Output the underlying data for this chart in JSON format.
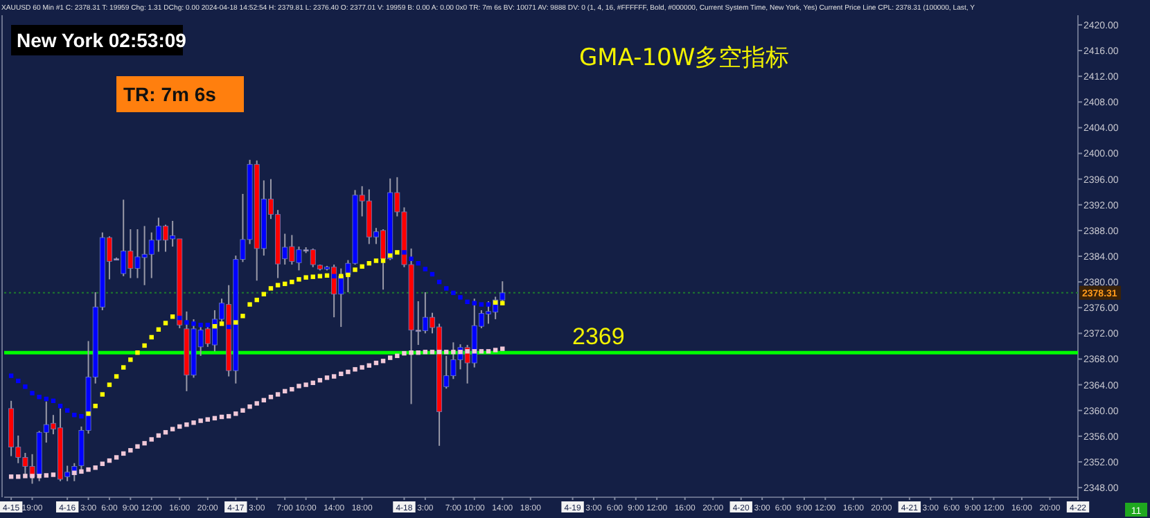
{
  "chart_data": {
    "type": "candlestick",
    "title": "GMA-10W多空指标",
    "annotations": [
      "XAUUSD 60 Min #1 C: 2378.31 T: 19959 Chg: 1.31 DChg: 0.00 2024-04-18 14:52:54 H: 2379.81 L: 2376.40 O: 2377.01 V: 19959 B: 0.00 A: 0.00 0x0 TR: 7m 6s BV: 10071 AV: 9888 DV: 0 (1, 4, 16, #FFFFFF, Bold, #000000, Current System Time, New York, Yes) Current Price Line CPL: 2378.31 (100000, Last, Y",
      "New York 02:53:09",
      "TR: 7m 6s",
      "11"
    ],
    "x": [
      "2024-04-15T16:00",
      "2024-04-15T17:00",
      "2024-04-15T18:00",
      "2024-04-15T19:00",
      "2024-04-15T20:00",
      "2024-04-15T21:00",
      "2024-04-15T22:00",
      "2024-04-15T23:00",
      "2024-04-16T00:00",
      "2024-04-16T01:00",
      "2024-04-16T02:00",
      "2024-04-16T03:00",
      "2024-04-16T04:00",
      "2024-04-16T05:00",
      "2024-04-16T06:00",
      "2024-04-16T07:00",
      "2024-04-16T08:00",
      "2024-04-16T09:00",
      "2024-04-16T10:00",
      "2024-04-16T11:00",
      "2024-04-16T12:00",
      "2024-04-16T13:00",
      "2024-04-16T14:00",
      "2024-04-16T15:00",
      "2024-04-16T16:00",
      "2024-04-16T17:00",
      "2024-04-16T18:00",
      "2024-04-16T19:00",
      "2024-04-16T20:00",
      "2024-04-16T21:00",
      "2024-04-16T22:00",
      "2024-04-16T23:00",
      "2024-04-17T00:00",
      "2024-04-17T01:00",
      "2024-04-17T02:00",
      "2024-04-17T03:00",
      "2024-04-17T04:00",
      "2024-04-17T05:00",
      "2024-04-17T06:00",
      "2024-04-17T07:00",
      "2024-04-17T08:00",
      "2024-04-17T09:00",
      "2024-04-17T10:00",
      "2024-04-17T11:00",
      "2024-04-17T12:00",
      "2024-04-17T13:00",
      "2024-04-17T14:00",
      "2024-04-17T15:00",
      "2024-04-17T16:00",
      "2024-04-17T17:00",
      "2024-04-17T18:00",
      "2024-04-17T19:00",
      "2024-04-17T20:00",
      "2024-04-17T21:00",
      "2024-04-17T22:00",
      "2024-04-17T23:00",
      "2024-04-18T00:00",
      "2024-04-18T01:00",
      "2024-04-18T02:00",
      "2024-04-18T03:00",
      "2024-04-18T04:00",
      "2024-04-18T05:00",
      "2024-04-18T06:00",
      "2024-04-18T07:00",
      "2024-04-18T08:00",
      "2024-04-18T09:00",
      "2024-04-18T10:00",
      "2024-04-18T11:00",
      "2024-04-18T12:00",
      "2024-04-18T13:00",
      "2024-04-18T14:00"
    ],
    "ohlc": [
      [
        2360.3,
        2361.5,
        2352.9,
        2354.3
      ],
      [
        2354.3,
        2356.1,
        2351.8,
        2352.7
      ],
      [
        2352.7,
        2353.4,
        2350.0,
        2351.3
      ],
      [
        2351.3,
        2353.2,
        2348.6,
        2349.7
      ],
      [
        2350.0,
        2356.8,
        2349.0,
        2356.6
      ],
      [
        2356.6,
        2361.4,
        2355.0,
        2357.8
      ],
      [
        2358.0,
        2359.3,
        2356.3,
        2357.1
      ],
      [
        2357.3,
        2360.3,
        2349.0,
        2349.3
      ],
      [
        2349.7,
        2351.4,
        2349.0,
        2350.4
      ],
      [
        2350.0,
        2351.8,
        2349.0,
        2351.3
      ],
      [
        2351.4,
        2357.5,
        2350.7,
        2356.9
      ],
      [
        2356.9,
        2370.8,
        2356.4,
        2365.2
      ],
      [
        2365.2,
        2378.4,
        2364.2,
        2376.1
      ],
      [
        2376.1,
        2387.7,
        2375.6,
        2386.9
      ],
      [
        2386.9,
        2387.1,
        2380.4,
        2383.2
      ],
      [
        2383.6,
        2383.8,
        2383.4,
        2383.6
      ],
      [
        2381.3,
        2392.8,
        2380.9,
        2384.8
      ],
      [
        2384.8,
        2388.2,
        2380.6,
        2382.1
      ],
      [
        2382.1,
        2388.2,
        2380.6,
        2383.9
      ],
      [
        2383.8,
        2388.7,
        2379.5,
        2384.3
      ],
      [
        2384.3,
        2387.7,
        2380.6,
        2386.5
      ],
      [
        2386.5,
        2390.0,
        2384.7,
        2388.7
      ],
      [
        2388.7,
        2388.9,
        2384.7,
        2386.5
      ],
      [
        2386.7,
        2389.5,
        2385.5,
        2387.2
      ],
      [
        2386.7,
        2386.7,
        2372.8,
        2373.3
      ],
      [
        2372.7,
        2375.4,
        2363.0,
        2365.5
      ],
      [
        2365.5,
        2374.2,
        2365.1,
        2372.7
      ],
      [
        2369.9,
        2373.5,
        2368.5,
        2372.5
      ],
      [
        2372.7,
        2373.5,
        2369.9,
        2370.4
      ],
      [
        2370.2,
        2375.6,
        2369.2,
        2374.2
      ],
      [
        2374.2,
        2377.4,
        2373.8,
        2376.7
      ],
      [
        2376.5,
        2379.5,
        2365.3,
        2366.2
      ],
      [
        2366.2,
        2384.1,
        2364.2,
        2383.5
      ],
      [
        2383.5,
        2393.7,
        2383.1,
        2386.6
      ],
      [
        2386.6,
        2399.0,
        2385.9,
        2398.3
      ],
      [
        2398.3,
        2398.9,
        2380.2,
        2385.2
      ],
      [
        2385.2,
        2395.8,
        2384.1,
        2392.9
      ],
      [
        2392.9,
        2396.0,
        2389.8,
        2390.5
      ],
      [
        2390.5,
        2391.2,
        2380.6,
        2382.8
      ],
      [
        2383.6,
        2387.5,
        2382.7,
        2385.4
      ],
      [
        2385.5,
        2387.3,
        2382.7,
        2383.2
      ],
      [
        2383.0,
        2385.5,
        2381.8,
        2385.0
      ],
      [
        2385.0,
        2385.4,
        2384.5,
        2385.0
      ],
      [
        2385.0,
        2385.2,
        2382.3,
        2382.7
      ],
      [
        2382.6,
        2382.7,
        2381.8,
        2382.0
      ],
      [
        2382.0,
        2382.5,
        2381.8,
        2382.3
      ],
      [
        2382.3,
        2382.7,
        2374.5,
        2378.1
      ],
      [
        2378.1,
        2382.1,
        2373.0,
        2380.9
      ],
      [
        2381.1,
        2383.4,
        2378.4,
        2382.9
      ],
      [
        2382.9,
        2394.3,
        2382.7,
        2393.5
      ],
      [
        2393.5,
        2394.9,
        2390.2,
        2392.6
      ],
      [
        2392.6,
        2394.4,
        2385.9,
        2387.0
      ],
      [
        2387.0,
        2388.4,
        2385.9,
        2387.8
      ],
      [
        2388.0,
        2388.2,
        2378.8,
        2383.6
      ],
      [
        2383.6,
        2396.1,
        2383.4,
        2393.9
      ],
      [
        2393.9,
        2396.3,
        2390.2,
        2390.9
      ],
      [
        2390.9,
        2391.6,
        2382.3,
        2382.7
      ],
      [
        2382.7,
        2385.2,
        2361.0,
        2372.5
      ],
      [
        2372.5,
        2377.0,
        2370.2,
        2372.5
      ],
      [
        2372.4,
        2378.4,
        2372.0,
        2374.5
      ],
      [
        2374.5,
        2375.2,
        2372.0,
        2372.9
      ],
      [
        2373.0,
        2373.5,
        2354.5,
        2359.8
      ],
      [
        2363.7,
        2368.5,
        2363.4,
        2365.4
      ],
      [
        2365.4,
        2370.6,
        2364.9,
        2367.9
      ],
      [
        2367.9,
        2370.3,
        2366.4,
        2369.8
      ],
      [
        2369.8,
        2370.2,
        2364.2,
        2367.4
      ],
      [
        2367.4,
        2377.4,
        2366.7,
        2373.2
      ],
      [
        2373.1,
        2375.6,
        2372.8,
        2375.1
      ],
      [
        2375.0,
        2377.0,
        2373.5,
        2375.4
      ],
      [
        2375.3,
        2377.7,
        2374.2,
        2377.2
      ],
      [
        2377.2,
        2380.1,
        2376.7,
        2378.3
      ]
    ],
    "colors": [
      "#ff0000",
      "#ff0000",
      "#ff0000",
      "#ff0000",
      "#0000ff",
      "#0000ff",
      "#ff0000",
      "#ff0000",
      "#0000ff",
      "#0000ff",
      "#0000ff",
      "#0000ff",
      "#0000ff",
      "#0000ff",
      "#ff0000",
      "#c8a0a0",
      "#0000ff",
      "#ff0000",
      "#0000ff",
      "#0000ff",
      "#0000ff",
      "#0000ff",
      "#ff0000",
      "#0000ff",
      "#ff0000",
      "#ff0000",
      "#0000ff",
      "#0000ff",
      "#ff0000",
      "#0000ff",
      "#0000ff",
      "#ff0000",
      "#0000ff",
      "#0000ff",
      "#0000ff",
      "#ff0000",
      "#0000ff",
      "#ff0000",
      "#ff0000",
      "#0000ff",
      "#ff0000",
      "#0000ff",
      "#c8a0a0",
      "#ff0000",
      "#ff0000",
      "#0000ff",
      "#ff0000",
      "#0000ff",
      "#0000ff",
      "#0000ff",
      "#ff0000",
      "#ff0000",
      "#0000ff",
      "#ff0000",
      "#0000ff",
      "#ff0000",
      "#ff0000",
      "#ff0000",
      "#c8a0a0",
      "#0000ff",
      "#ff0000",
      "#ff0000",
      "#0000ff",
      "#0000ff",
      "#0000ff",
      "#ff0000",
      "#0000ff",
      "#0000ff",
      "#0000ff",
      "#0000ff",
      "#0000ff"
    ],
    "series": [
      {
        "type": "scatter",
        "marker": "square",
        "color": "#0000ff",
        "values": [
          2365.4,
          2364.6,
          2363.7,
          2362.7,
          2362.1,
          2361.8,
          2361.5,
          2360.7,
          2360.0,
          2359.3,
          2359.1,
          null,
          null,
          null,
          null,
          null,
          null,
          null,
          null,
          null,
          null,
          null,
          null,
          null,
          2374.4,
          2373.7,
          2373.5,
          2373.3,
          2373.3,
          null,
          null,
          2373.0,
          null,
          null,
          null,
          null,
          null,
          null,
          null,
          null,
          null,
          null,
          null,
          null,
          null,
          null,
          2380.9,
          null,
          null,
          null,
          null,
          null,
          null,
          null,
          null,
          null,
          2384.6,
          2383.6,
          2382.9,
          2382.0,
          2381.2,
          2380.0,
          2379.0,
          2378.3,
          2377.6,
          2376.9,
          2376.7,
          2376.5,
          2376.5,
          null,
          null
        ]
      },
      {
        "type": "scatter",
        "marker": "square",
        "color": "#ffff00",
        "values": [
          null,
          null,
          null,
          null,
          null,
          null,
          null,
          null,
          null,
          null,
          null,
          2359.5,
          2360.7,
          2362.5,
          2364.0,
          2365.3,
          2366.7,
          2367.9,
          2369.0,
          2370.1,
          2371.4,
          2372.6,
          2373.6,
          2374.6,
          null,
          null,
          null,
          null,
          null,
          2373.1,
          2373.5,
          null,
          2373.7,
          2374.7,
          2376.5,
          2377.2,
          2378.1,
          2379.0,
          2379.5,
          2379.7,
          2380.0,
          2380.4,
          2380.7,
          2380.8,
          2380.9,
          2381.0,
          null,
          2380.9,
          2381.1,
          2381.9,
          2382.4,
          2382.9,
          2383.3,
          2383.3,
          2384.1,
          2384.6,
          null,
          null,
          null,
          null,
          null,
          null,
          null,
          null,
          null,
          null,
          null,
          null,
          null,
          2376.8,
          2376.7
        ]
      },
      {
        "type": "scatter",
        "marker": "square",
        "color": "#f0c8d8",
        "values": [
          2349.7,
          2349.7,
          2349.8,
          2349.8,
          2349.8,
          2349.9,
          2350.0,
          null,
          null,
          2350.3,
          2350.5,
          2350.8,
          2351.1,
          2351.7,
          2352.2,
          2352.7,
          2353.3,
          2353.8,
          2354.4,
          2354.9,
          2355.5,
          2356.1,
          2356.6,
          2357.1,
          2357.5,
          2357.8,
          2358.1,
          2358.4,
          2358.6,
          2358.8,
          2359.0,
          2359.1,
          2359.5,
          2360.0,
          2360.6,
          2361.1,
          2361.6,
          2362.1,
          2362.5,
          2363.0,
          2363.3,
          2363.8,
          2364.0,
          2364.3,
          2364.7,
          2365.1,
          2365.3,
          2365.7,
          2366.0,
          2366.4,
          2366.7,
          2367.0,
          2367.4,
          2367.7,
          2368.2,
          2368.5,
          2368.9,
          2369.0,
          2369.0,
          2369.1,
          2369.1,
          2369.1,
          2369.1,
          2369.1,
          2369.1,
          2369.2,
          2369.2,
          2369.2,
          2369.2,
          2369.4,
          2369.6
        ]
      }
    ],
    "xlim": [
      "2024-04-15T15:00",
      "2024-04-22T00:00"
    ],
    "xticks": [
      {
        "value": "2024-04-15T16:00",
        "label": "4-15"
      },
      {
        "value": "2024-04-15T19:00",
        "label": "19:00"
      },
      {
        "value": "2024-04-16T00:00",
        "label": "4-16"
      },
      {
        "value": "2024-04-16T03:00",
        "label": "3:00"
      },
      {
        "value": "2024-04-16T06:00",
        "label": "6:00"
      },
      {
        "value": "2024-04-16T09:00",
        "label": "9:00"
      },
      {
        "value": "2024-04-16T12:00",
        "label": "12:00"
      },
      {
        "value": "2024-04-16T16:00",
        "label": "16:00"
      },
      {
        "value": "2024-04-16T20:00",
        "label": "20:00"
      },
      {
        "value": "2024-04-17T00:00",
        "label": "4-17"
      },
      {
        "value": "2024-04-17T03:00",
        "label": "3:00"
      },
      {
        "value": "2024-04-17T07:00",
        "label": "7:00"
      },
      {
        "value": "2024-04-17T10:00",
        "label": "10:00"
      },
      {
        "value": "2024-04-17T14:00",
        "label": "14:00"
      },
      {
        "value": "2024-04-17T18:00",
        "label": "18:00"
      },
      {
        "value": "2024-04-18T00:00",
        "label": "4-18"
      },
      {
        "value": "2024-04-18T03:00",
        "label": "3:00"
      },
      {
        "value": "2024-04-18T07:00",
        "label": "7:00"
      },
      {
        "value": "2024-04-18T10:00",
        "label": "10:00"
      },
      {
        "value": "2024-04-18T14:00",
        "label": "14:00"
      },
      {
        "value": "2024-04-18T18:00",
        "label": "18:00"
      },
      {
        "value": "2024-04-19T00:00",
        "label": "4-19"
      },
      {
        "value": "2024-04-19T03:00",
        "label": "3:00"
      },
      {
        "value": "2024-04-19T06:00",
        "label": "6:00"
      },
      {
        "value": "2024-04-19T09:00",
        "label": "9:00"
      },
      {
        "value": "2024-04-19T12:00",
        "label": "12:00"
      },
      {
        "value": "2024-04-19T16:00",
        "label": "16:00"
      },
      {
        "value": "2024-04-19T20:00",
        "label": "20:00"
      },
      {
        "value": "2024-04-20T00:00",
        "label": "4-20"
      },
      {
        "value": "2024-04-20T03:00",
        "label": "3:00"
      },
      {
        "value": "2024-04-20T06:00",
        "label": "6:00"
      },
      {
        "value": "2024-04-20T09:00",
        "label": "9:00"
      },
      {
        "value": "2024-04-20T12:00",
        "label": "12:00"
      },
      {
        "value": "2024-04-20T16:00",
        "label": "16:00"
      },
      {
        "value": "2024-04-20T20:00",
        "label": "20:00"
      },
      {
        "value": "2024-04-21T00:00",
        "label": "4-21"
      },
      {
        "value": "2024-04-21T03:00",
        "label": "3:00"
      },
      {
        "value": "2024-04-21T06:00",
        "label": "6:00"
      },
      {
        "value": "2024-04-21T09:00",
        "label": "9:00"
      },
      {
        "value": "2024-04-21T12:00",
        "label": "12:00"
      },
      {
        "value": "2024-04-21T16:00",
        "label": "16:00"
      },
      {
        "value": "2024-04-21T20:00",
        "label": "20:00"
      },
      {
        "value": "2024-04-22T00:00",
        "label": "4-22"
      }
    ],
    "ylim": [
      2346.5,
      2421.5
    ],
    "yticks": [
      {
        "value": 2348,
        "label": "2348.00"
      },
      {
        "value": 2352,
        "label": "2352.00"
      },
      {
        "value": 2356,
        "label": "2356.00"
      },
      {
        "value": 2360,
        "label": "2360.00"
      },
      {
        "value": 2364,
        "label": "2364.00"
      },
      {
        "value": 2368,
        "label": "2368.00"
      },
      {
        "value": 2372,
        "label": "2372.00"
      },
      {
        "value": 2376,
        "label": "2376.00"
      },
      {
        "value": 2380,
        "label": "2380.00"
      },
      {
        "value": 2384,
        "label": "2384.00"
      },
      {
        "value": 2388,
        "label": "2388.00"
      },
      {
        "value": 2392,
        "label": "2392.00"
      },
      {
        "value": 2396,
        "label": "2396.00"
      },
      {
        "value": 2400,
        "label": "2400.00"
      },
      {
        "value": 2404,
        "label": "2404.00"
      },
      {
        "value": 2408,
        "label": "2408.00"
      },
      {
        "value": 2412,
        "label": "2412.00"
      },
      {
        "value": 2416,
        "label": "2416.00"
      },
      {
        "value": 2420,
        "label": "2420.00"
      }
    ],
    "ref_lines": [
      {
        "axis": "y",
        "value": 2369,
        "label": "2369",
        "color": "#00ff00",
        "line_style": "solid"
      },
      {
        "axis": "y",
        "value": 2378.31,
        "label": "2378.31",
        "color": "#1e7a2e",
        "line_style": "dotted"
      }
    ]
  }
}
